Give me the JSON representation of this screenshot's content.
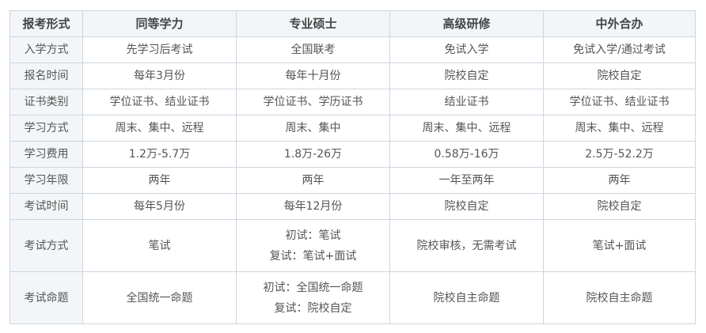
{
  "headers": [
    "报考形式",
    "同等学力",
    "专业硕士",
    "高级研修",
    "中外合办"
  ],
  "rows": [
    [
      "入学方式",
      "先学习后考试",
      "全国联考",
      "免试入学",
      "免试入学/通过考试"
    ],
    [
      "报名时间",
      "每年3月份",
      "每年十月份",
      "院校自定",
      "院校自定"
    ],
    [
      "证书类别",
      "学位证书、结业证书",
      "学位证书、学历证书",
      "结业证书",
      "学位证书、结业证书"
    ],
    [
      "学习方式",
      "周末、集中、远程",
      "周末、集中",
      "周末、集中、远程",
      "周末、集中、远程"
    ],
    [
      "学习费用",
      "1.2万-5.7万",
      "1.8万-26万",
      "0.58万-16万",
      "2.5万-52.2万"
    ],
    [
      "学习年限",
      "两年",
      "两年",
      "一年至两年",
      "两年"
    ],
    [
      "考试时间",
      "每年5月份",
      "每年12月份",
      "院校自定",
      "院校自定"
    ],
    [
      "考试方式",
      "笔试",
      "初试：笔试\n复试：笔试+面试",
      "院校审核，无需考试",
      "笔试+面试"
    ],
    [
      "考试命题",
      "全国统一命题",
      "初试：全国统一命题\n复试：院校自定",
      "院校自主命题",
      "院校自主命题"
    ]
  ]
}
